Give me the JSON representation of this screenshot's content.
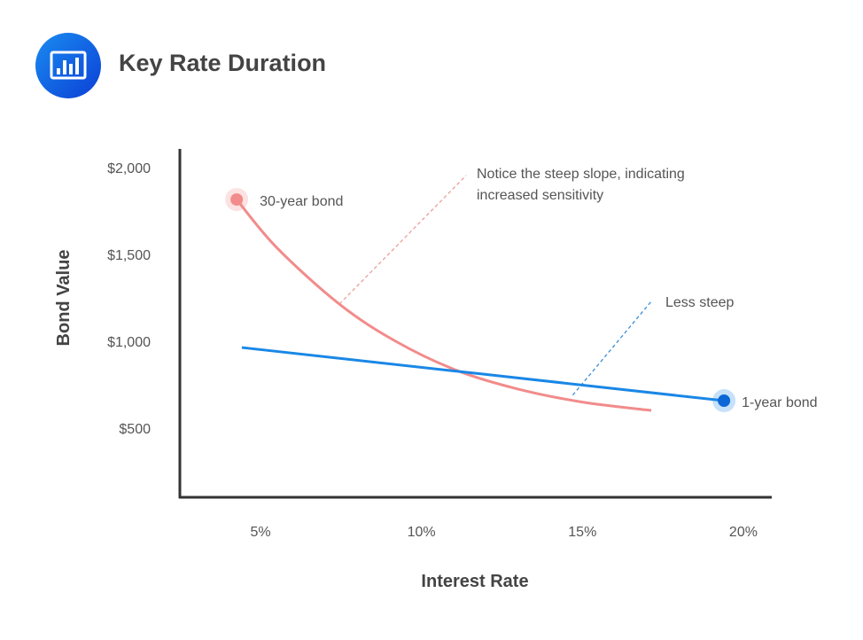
{
  "header": {
    "title": "Key Rate Duration",
    "icon": "bar-chart-icon"
  },
  "chart_data": {
    "type": "line",
    "title": "Key Rate Duration",
    "xlabel": "Interest Rate",
    "ylabel": "Bond Value",
    "x_ticks": [
      {
        "value": 5,
        "label": "5%"
      },
      {
        "value": 10,
        "label": "10%"
      },
      {
        "value": 15,
        "label": "15%"
      },
      {
        "value": 20,
        "label": "20%"
      }
    ],
    "y_ticks": [
      {
        "value": 500,
        "label": "$500"
      },
      {
        "value": 1000,
        "label": "$1,000"
      },
      {
        "value": 1500,
        "label": "$1,500"
      },
      {
        "value": 2000,
        "label": "$2,000"
      }
    ],
    "xlim": [
      2.5,
      21
    ],
    "ylim": [
      100,
      2100
    ],
    "grid": false,
    "series": [
      {
        "name": "30-year bond",
        "color": "#f28b8b",
        "points": [
          [
            4.26,
            1816
          ],
          [
            5.5,
            1540
          ],
          [
            7.45,
            1214
          ],
          [
            9.2,
            1000
          ],
          [
            11.1,
            832
          ],
          [
            13,
            725
          ],
          [
            15,
            650
          ],
          [
            17.14,
            602
          ]
        ],
        "marker": "start"
      },
      {
        "name": "1-year bond",
        "color": "#1a87e6",
        "points": [
          [
            4.42,
            964
          ],
          [
            19.4,
            658
          ]
        ],
        "marker": "end"
      }
    ],
    "annotations": [
      {
        "lines": [
          "Notice the steep slope, indicating",
          "increased sensitivity"
        ],
        "color": "#e8a09a",
        "from": [
          7.45,
          1214
        ]
      },
      {
        "lines": [
          "Less steep"
        ],
        "color": "#3a8fd8",
        "from": [
          14.7,
          690
        ]
      }
    ]
  }
}
